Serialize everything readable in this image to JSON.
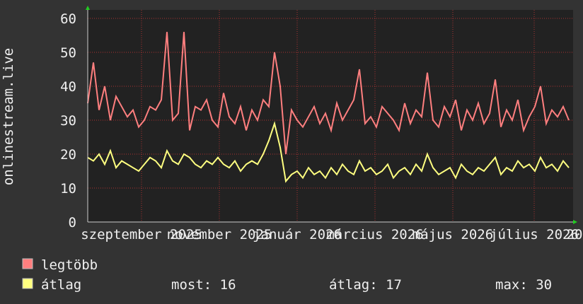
{
  "chart_data": {
    "type": "line",
    "ylabel": "onlinestream.live",
    "x": [
      0,
      4,
      8,
      12,
      16,
      20,
      24,
      28,
      32,
      36,
      40,
      44,
      48,
      52,
      56,
      60,
      64,
      68,
      72,
      76,
      80,
      84,
      88,
      92,
      96,
      100,
      104,
      108,
      112,
      116,
      120,
      124,
      128,
      132,
      136,
      140,
      144,
      148,
      152,
      156,
      160,
      164,
      168,
      172,
      176,
      180,
      184,
      188,
      192,
      196,
      200,
      204,
      208,
      212,
      216,
      220,
      224,
      228,
      232,
      236,
      240,
      244,
      248,
      252,
      256,
      260,
      264,
      268,
      272,
      276,
      280,
      284,
      288,
      292,
      296,
      300,
      304,
      308,
      312,
      316,
      320,
      324,
      328,
      332,
      336,
      340
    ],
    "xlim": [
      0,
      343
    ],
    "xticks": [
      {
        "value": 38,
        "label": "szeptember 2025"
      },
      {
        "value": 93,
        "label": "november 2025"
      },
      {
        "value": 148,
        "label": "január 2026"
      },
      {
        "value": 203,
        "label": "március 2026"
      },
      {
        "value": 258,
        "label": "május 2026"
      },
      {
        "value": 315.5,
        "label": "július 2026"
      },
      {
        "value": 344,
        "label": "20"
      }
    ],
    "ylim": [
      0,
      60
    ],
    "yticks": [
      0,
      10,
      20,
      30,
      40,
      50,
      60
    ],
    "grid": true,
    "series": [
      {
        "name": "legtöbb",
        "color": "#ff7f7f",
        "values": [
          35,
          47,
          33,
          40,
          30,
          37,
          34,
          31,
          33,
          28,
          30,
          34,
          33,
          36,
          56,
          30,
          32,
          56,
          27,
          34,
          33,
          36,
          30,
          28,
          38,
          31,
          29,
          34,
          27,
          33,
          30,
          36,
          34,
          50,
          40,
          20,
          33,
          30,
          28,
          31,
          34,
          29,
          32,
          27,
          35,
          30,
          33,
          36,
          45,
          29,
          31,
          28,
          34,
          32,
          30,
          27,
          35,
          29,
          33,
          31,
          44,
          30,
          28,
          34,
          31,
          36,
          27,
          33,
          30,
          35,
          29,
          32,
          42,
          28,
          33,
          30,
          36,
          27,
          31,
          34,
          40,
          29,
          33,
          31,
          34,
          30
        ]
      },
      {
        "name": "átlag",
        "color": "#ffff80",
        "values": [
          19,
          18,
          20,
          17,
          21,
          16,
          18,
          17,
          16,
          15,
          17,
          19,
          18,
          16,
          21,
          18,
          17,
          20,
          19,
          17,
          16,
          18,
          17,
          19,
          17,
          16,
          18,
          15,
          17,
          18,
          17,
          20,
          24,
          29,
          22,
          12,
          14,
          15,
          13,
          16,
          14,
          15,
          13,
          16,
          14,
          17,
          15,
          14,
          18,
          15,
          16,
          14,
          15,
          17,
          13,
          15,
          16,
          14,
          17,
          15,
          20,
          16,
          14,
          15,
          16,
          13,
          17,
          15,
          14,
          16,
          15,
          17,
          19,
          14,
          16,
          15,
          18,
          16,
          17,
          15,
          19,
          16,
          17,
          15,
          18,
          16
        ]
      }
    ],
    "stats": [
      "most: 16",
      "átlag: 17",
      "max: 30"
    ]
  }
}
